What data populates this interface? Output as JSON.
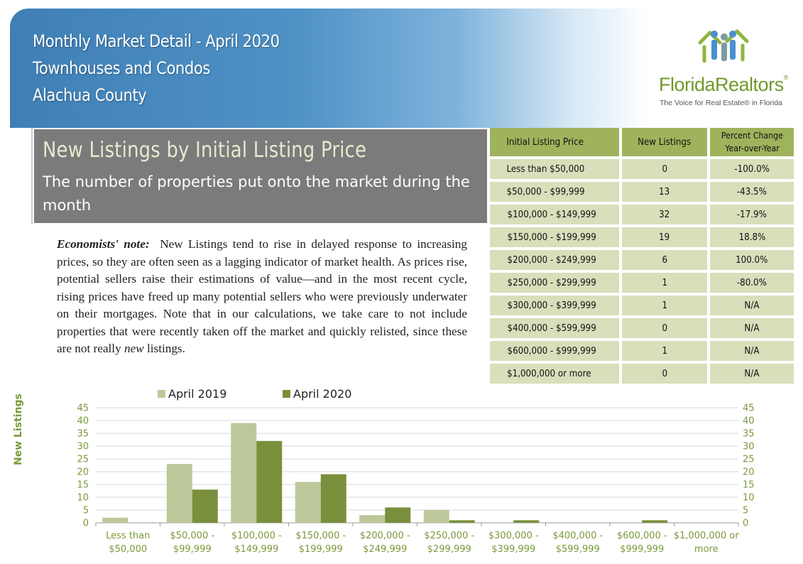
{
  "header": {
    "line1": "Monthly Market Detail - April 2020",
    "line2": "Townhouses and Condos",
    "line3": "Alachua County"
  },
  "logo": {
    "name": "FloridaRealtors",
    "registered": "®",
    "tagline": "The Voice for Real Estate® in Florida"
  },
  "panel": {
    "title": "New Listings by Initial Listing Price",
    "subtitle": "The number of properties put onto the market during the month"
  },
  "note": {
    "label": "Economists' note:",
    "text_before": "New Listings tend to rise in delayed response to increasing prices, so they are often seen as a lagging indicator of market health. As prices rise, potential sellers raise their estimations of value—and in the most recent cycle, rising prices have freed up many potential sellers who were previously underwater on their mortgages. Note that in our calculations, we take care to not include properties that were recently taken off the market and quickly relisted, since these are not really",
    "emphasis": "new",
    "text_after": "listings."
  },
  "table": {
    "headers": [
      "Initial Listing Price",
      "New Listings",
      "Percent Change",
      "Year-over-Year"
    ],
    "rows": [
      [
        "Less than $50,000",
        "0",
        "-100.0%"
      ],
      [
        "$50,000 - $99,999",
        "13",
        "-43.5%"
      ],
      [
        "$100,000 - $149,999",
        "32",
        "-17.9%"
      ],
      [
        "$150,000 - $199,999",
        "19",
        "18.8%"
      ],
      [
        "$200,000 - $249,999",
        "6",
        "100.0%"
      ],
      [
        "$250,000 - $299,999",
        "1",
        "-80.0%"
      ],
      [
        "$300,000 - $399,999",
        "1",
        "N/A"
      ],
      [
        "$400,000 - $599,999",
        "0",
        "N/A"
      ],
      [
        "$600,000 - $999,999",
        "1",
        "N/A"
      ],
      [
        "$1,000,000 or more",
        "0",
        "N/A"
      ]
    ]
  },
  "chart_data": {
    "type": "bar",
    "categories": [
      [
        "Less than",
        "$50,000"
      ],
      [
        "$50,000 -",
        "$99,999"
      ],
      [
        "$100,000 -",
        "$149,999"
      ],
      [
        "$150,000 -",
        "$199,999"
      ],
      [
        "$200,000 -",
        "$249,999"
      ],
      [
        "$250,000 -",
        "$299,999"
      ],
      [
        "$300,000 -",
        "$399,999"
      ],
      [
        "$400,000 -",
        "$599,999"
      ],
      [
        "$600,000 -",
        "$999,999"
      ],
      [
        "$1,000,000 or",
        "more"
      ]
    ],
    "series": [
      {
        "name": "April 2019",
        "color": "#bcc89a",
        "values": [
          2,
          23,
          39,
          16,
          3,
          5,
          0,
          0,
          0,
          0
        ]
      },
      {
        "name": "April 2020",
        "color": "#7a8f3c",
        "values": [
          0,
          13,
          32,
          19,
          6,
          1,
          1,
          0,
          1,
          0
        ]
      }
    ],
    "ylabel": "New Listings",
    "ylim": [
      0,
      45
    ],
    "yticks": [
      0,
      5,
      10,
      15,
      20,
      25,
      30,
      35,
      40,
      45
    ],
    "grid": true,
    "legend": "top-center"
  }
}
